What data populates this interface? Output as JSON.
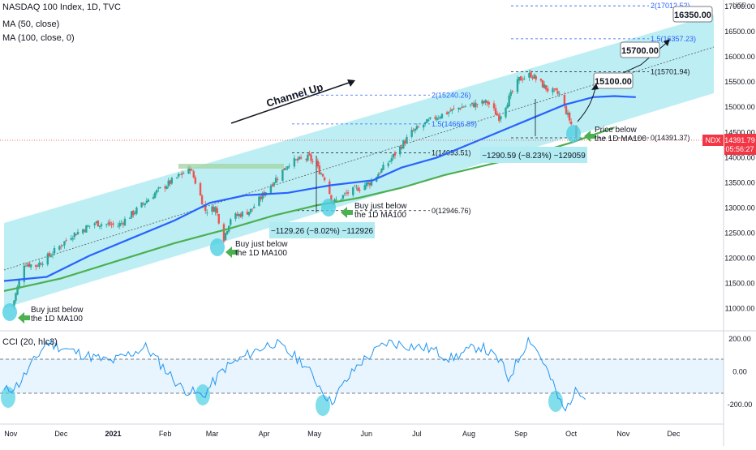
{
  "header": {
    "title": "NASDAQ 100 Index, 1D, TVC",
    "ma50": "MA (50, close)",
    "ma100": "MA (100, close, 0)"
  },
  "price_axis": {
    "currency": "USD",
    "ticks": [
      "17000.00",
      "16500.00",
      "16000.00",
      "15500.00",
      "15000.00",
      "14500.00",
      "14000.00",
      "13500.00",
      "13000.00",
      "12500.00",
      "12000.00",
      "11500.00",
      "11000.00"
    ],
    "symbol_tag": "NDX",
    "last_price": "14391.79",
    "countdown": "05:56:27",
    "tag_color": "#f23645"
  },
  "cci_axis": {
    "label": "CCI (20, hlc3)",
    "ticks": [
      "200.00",
      "0.00",
      "-200.00"
    ]
  },
  "time_axis": {
    "labels": [
      "Nov",
      "Dec",
      "2021",
      "Feb",
      "Mar",
      "Apr",
      "May",
      "Jun",
      "Jul",
      "Aug",
      "Sep",
      "Oct",
      "Nov",
      "Dec"
    ]
  },
  "annotations": {
    "channel": "Channel Up",
    "buy_line1": "Buy just below",
    "buy_line2": "the 1D MA100",
    "price_below_line1": "Price below",
    "price_below_line2": "the 1D MA100",
    "drop1": "−1129.26 (−8.02%) −112926",
    "drop2": "−1290.59 (−8.23%) −129059",
    "fib_top": "2(17012.52)",
    "fib_15_upper": "1.5(16357.23)",
    "fib_1_upper": "1(15701.94)",
    "fib_0_upper": "0(14391.37)",
    "fib_2_lower": "2(15240.26)",
    "fib_15_lower": "1.5(14666.89)",
    "fib_1_lower": "1(14093.51)",
    "fib_0_lower": "0(12946.76)",
    "target1": "15100.00",
    "target2": "15700.00",
    "target3": "16350.00"
  },
  "colors": {
    "up": "#26a69a",
    "down": "#ef5350",
    "ma50": "#2962ff",
    "ma100": "#4caf50",
    "channel": "#b2ebf2",
    "cci": "#2196f3",
    "arrow": "#4caf50"
  },
  "chart_data": {
    "type": "candlestick",
    "title": "NASDAQ 100 Index, 1D, TVC",
    "ylim": [
      10850,
      17080
    ],
    "x": [
      "2020-11",
      "2020-12",
      "2021-01",
      "2021-02",
      "2021-03",
      "2021-04",
      "2021-05",
      "2021-06",
      "2021-07",
      "2021-08",
      "2021-09",
      "2021-10"
    ],
    "close_anchors": [
      [
        "2020-11-02",
        11050
      ],
      [
        "2020-11-09",
        11900
      ],
      [
        "2020-11-16",
        11850
      ],
      [
        "2020-11-24",
        12050
      ],
      [
        "2020-12-07",
        12450
      ],
      [
        "2020-12-21",
        12700
      ],
      [
        "2021-01-04",
        12650
      ],
      [
        "2021-01-13",
        12900
      ],
      [
        "2021-01-26",
        13300
      ],
      [
        "2021-02-08",
        13600
      ],
      [
        "2021-02-16",
        13800
      ],
      [
        "2021-02-25",
        12950
      ],
      [
        "2021-03-03",
        13000
      ],
      [
        "2021-03-08",
        12400
      ],
      [
        "2021-03-12",
        12800
      ],
      [
        "2021-03-24",
        12950
      ],
      [
        "2021-04-06",
        13500
      ],
      [
        "2021-04-16",
        13900
      ],
      [
        "2021-04-28",
        14000
      ],
      [
        "2021-05-07",
        13600
      ],
      [
        "2021-05-12",
        13100
      ],
      [
        "2021-05-21",
        13300
      ],
      [
        "2021-06-03",
        13500
      ],
      [
        "2021-06-14",
        13900
      ],
      [
        "2021-06-28",
        14500
      ],
      [
        "2021-07-12",
        14800
      ],
      [
        "2021-07-27",
        15000
      ],
      [
        "2021-08-12",
        15100
      ],
      [
        "2021-08-19",
        14800
      ],
      [
        "2021-08-31",
        15550
      ],
      [
        "2021-09-07",
        15650
      ],
      [
        "2021-09-17",
        15350
      ],
      [
        "2021-09-24",
        15250
      ],
      [
        "2021-09-30",
        14750
      ],
      [
        "2021-10-04",
        14391.79
      ]
    ],
    "series": [
      {
        "name": "MA (50, close)",
        "values": [
          [
            0.0,
            11550
          ],
          [
            0.06,
            11630
          ],
          [
            0.12,
            12050
          ],
          [
            0.18,
            12400
          ],
          [
            0.24,
            12750
          ],
          [
            0.29,
            13100
          ],
          [
            0.34,
            13250
          ],
          [
            0.4,
            13300
          ],
          [
            0.46,
            13450
          ],
          [
            0.52,
            13550
          ],
          [
            0.56,
            13800
          ],
          [
            0.61,
            14000
          ],
          [
            0.67,
            14350
          ],
          [
            0.73,
            14700
          ],
          [
            0.79,
            15050
          ],
          [
            0.83,
            15200
          ],
          [
            0.86,
            15220
          ],
          [
            0.89,
            15200
          ]
        ]
      },
      {
        "name": "MA (100, close, 0)",
        "values": [
          [
            0.0,
            11350
          ],
          [
            0.08,
            11600
          ],
          [
            0.16,
            11950
          ],
          [
            0.24,
            12300
          ],
          [
            0.32,
            12600
          ],
          [
            0.38,
            12850
          ],
          [
            0.44,
            13050
          ],
          [
            0.5,
            13200
          ],
          [
            0.56,
            13400
          ],
          [
            0.62,
            13650
          ],
          [
            0.68,
            13850
          ],
          [
            0.74,
            14050
          ],
          [
            0.8,
            14300
          ],
          [
            0.84,
            14500
          ],
          [
            0.86,
            14600
          ]
        ]
      }
    ],
    "cci": {
      "name": "CCI (20, hlc3)",
      "ylim": [
        -320,
        250
      ],
      "bands": [
        100,
        -100
      ]
    }
  }
}
